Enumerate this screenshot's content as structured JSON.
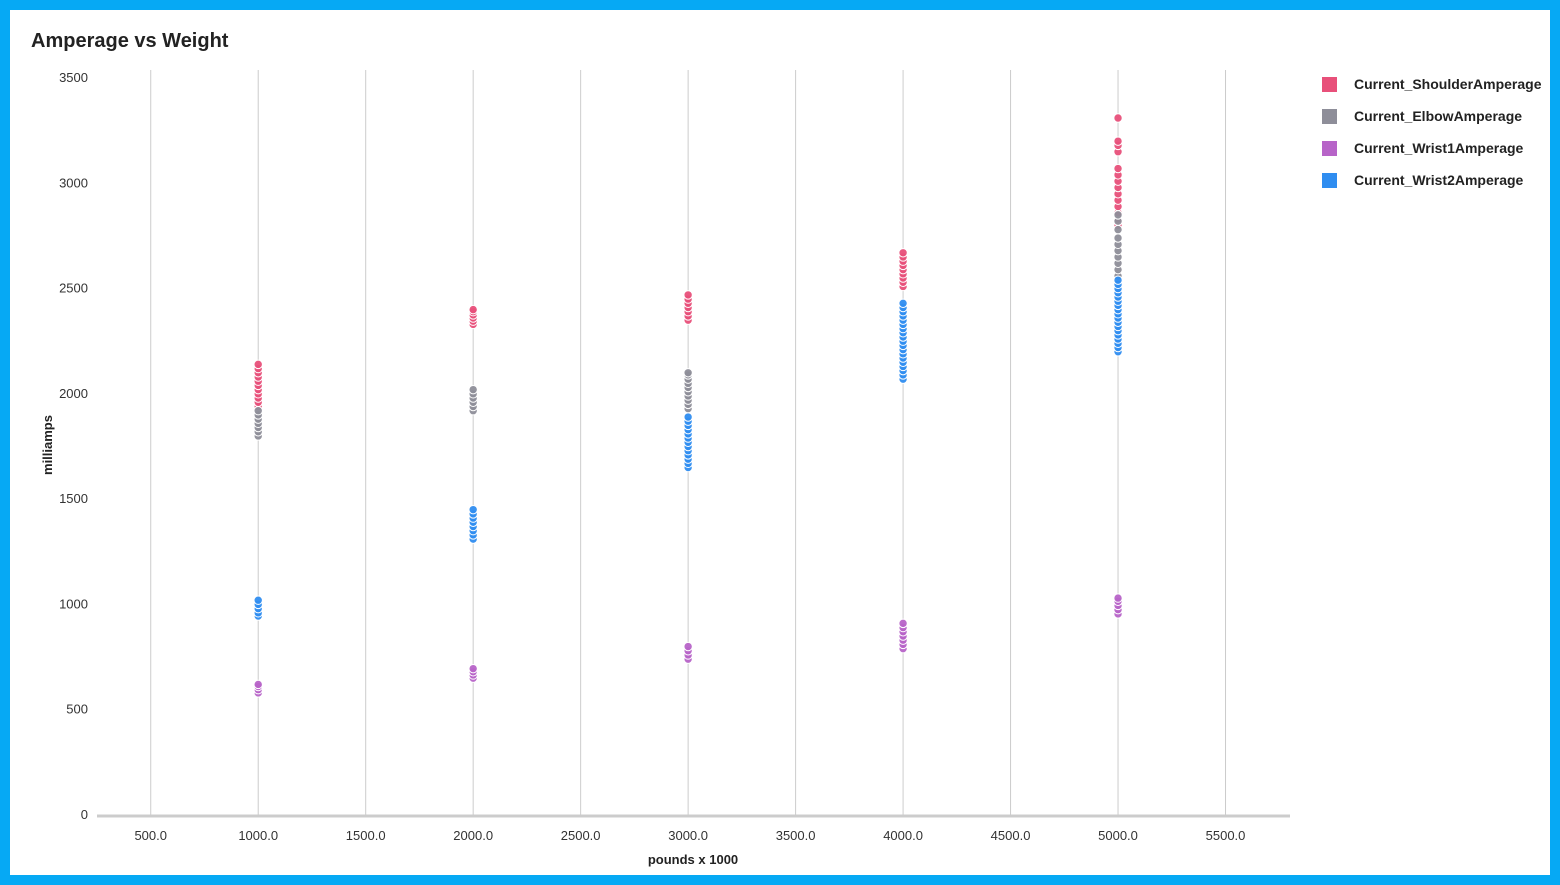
{
  "chart_data": {
    "type": "scatter",
    "title": "Amperage vs Weight",
    "xlabel": "pounds x 1000",
    "ylabel": "milliamps",
    "xlim": [
      250,
      5800
    ],
    "ylim": [
      0,
      3500
    ],
    "x_ticks": [
      500,
      1000,
      1500,
      2000,
      2500,
      3000,
      3500,
      4000,
      4500,
      5000,
      5500
    ],
    "x_tick_labels": [
      "500.0",
      "1000.0",
      "1500.0",
      "2000.0",
      "2500.0",
      "3000.0",
      "3500.0",
      "4000.0",
      "4500.0",
      "5000.0",
      "5500.0"
    ],
    "y_ticks": [
      0,
      500,
      1000,
      1500,
      2000,
      2500,
      3000,
      3500
    ],
    "y_tick_labels": [
      "0",
      "500",
      "1000",
      "1500",
      "2000",
      "2500",
      "3000",
      "3500"
    ],
    "grid": "vertical",
    "legend": "right",
    "series": [
      {
        "name": "Current_ShoulderAmperage",
        "color": "#e8507a",
        "points": [
          {
            "x": 1000,
            "values": [
              1940,
              1960,
              1980,
              2000,
              2020,
              2040,
              2060,
              2080,
              2100,
              2120,
              2140
            ]
          },
          {
            "x": 2000,
            "values": [
              2330,
              2345,
              2360,
              2375,
              2390,
              2400
            ]
          },
          {
            "x": 3000,
            "values": [
              2350,
              2370,
              2390,
              2410,
              2430,
              2450,
              2470
            ]
          },
          {
            "x": 4000,
            "values": [
              2510,
              2530,
              2550,
              2570,
              2590,
              2610,
              2630,
              2650,
              2670
            ]
          },
          {
            "x": 5000,
            "values": [
              2800,
              2830,
              2860,
              2890,
              2920,
              2950,
              2980,
              3010,
              3040,
              3070,
              3150,
              3180,
              3200,
              3310
            ]
          }
        ]
      },
      {
        "name": "Current_ElbowAmperage",
        "color": "#8e8e99",
        "points": [
          {
            "x": 1000,
            "values": [
              1800,
              1820,
              1840,
              1860,
              1880,
              1900,
              1920
            ]
          },
          {
            "x": 2000,
            "values": [
              1920,
              1940,
              1960,
              1980,
              2000,
              2020
            ]
          },
          {
            "x": 3000,
            "values": [
              1930,
              1950,
              1970,
              1990,
              2010,
              2030,
              2050,
              2070,
              2090,
              2100
            ]
          },
          {
            "x": 5000,
            "values": [
              2560,
              2590,
              2620,
              2650,
              2680,
              2710,
              2740,
              2780,
              2820,
              2850
            ]
          }
        ]
      },
      {
        "name": "Current_Wrist1Amperage",
        "color": "#b764c8",
        "points": [
          {
            "x": 1000,
            "values": [
              580,
              595,
              610,
              620
            ]
          },
          {
            "x": 2000,
            "values": [
              650,
              665,
              680,
              695
            ]
          },
          {
            "x": 3000,
            "values": [
              740,
              760,
              780,
              800
            ]
          },
          {
            "x": 4000,
            "values": [
              790,
              810,
              830,
              850,
              870,
              890,
              910
            ]
          },
          {
            "x": 5000,
            "values": [
              955,
              975,
              995,
              1015,
              1030
            ]
          }
        ]
      },
      {
        "name": "Current_Wrist2Amperage",
        "color": "#2f8df0",
        "points": [
          {
            "x": 1000,
            "values": [
              945,
              960,
              980,
              1000,
              1020
            ]
          },
          {
            "x": 2000,
            "values": [
              1310,
              1330,
              1350,
              1370,
              1390,
              1410,
              1430,
              1450
            ]
          },
          {
            "x": 3000,
            "values": [
              1650,
              1670,
              1690,
              1710,
              1730,
              1750,
              1770,
              1790,
              1810,
              1830,
              1850,
              1870,
              1890
            ]
          },
          {
            "x": 4000,
            "values": [
              2070,
              2090,
              2110,
              2130,
              2150,
              2170,
              2190,
              2210,
              2230,
              2250,
              2270,
              2290,
              2310,
              2330,
              2350,
              2370,
              2390,
              2410,
              2430
            ]
          },
          {
            "x": 5000,
            "values": [
              2200,
              2220,
              2240,
              2260,
              2280,
              2300,
              2320,
              2340,
              2360,
              2380,
              2400,
              2420,
              2440,
              2460,
              2480,
              2500,
              2520,
              2540
            ]
          }
        ]
      }
    ]
  }
}
